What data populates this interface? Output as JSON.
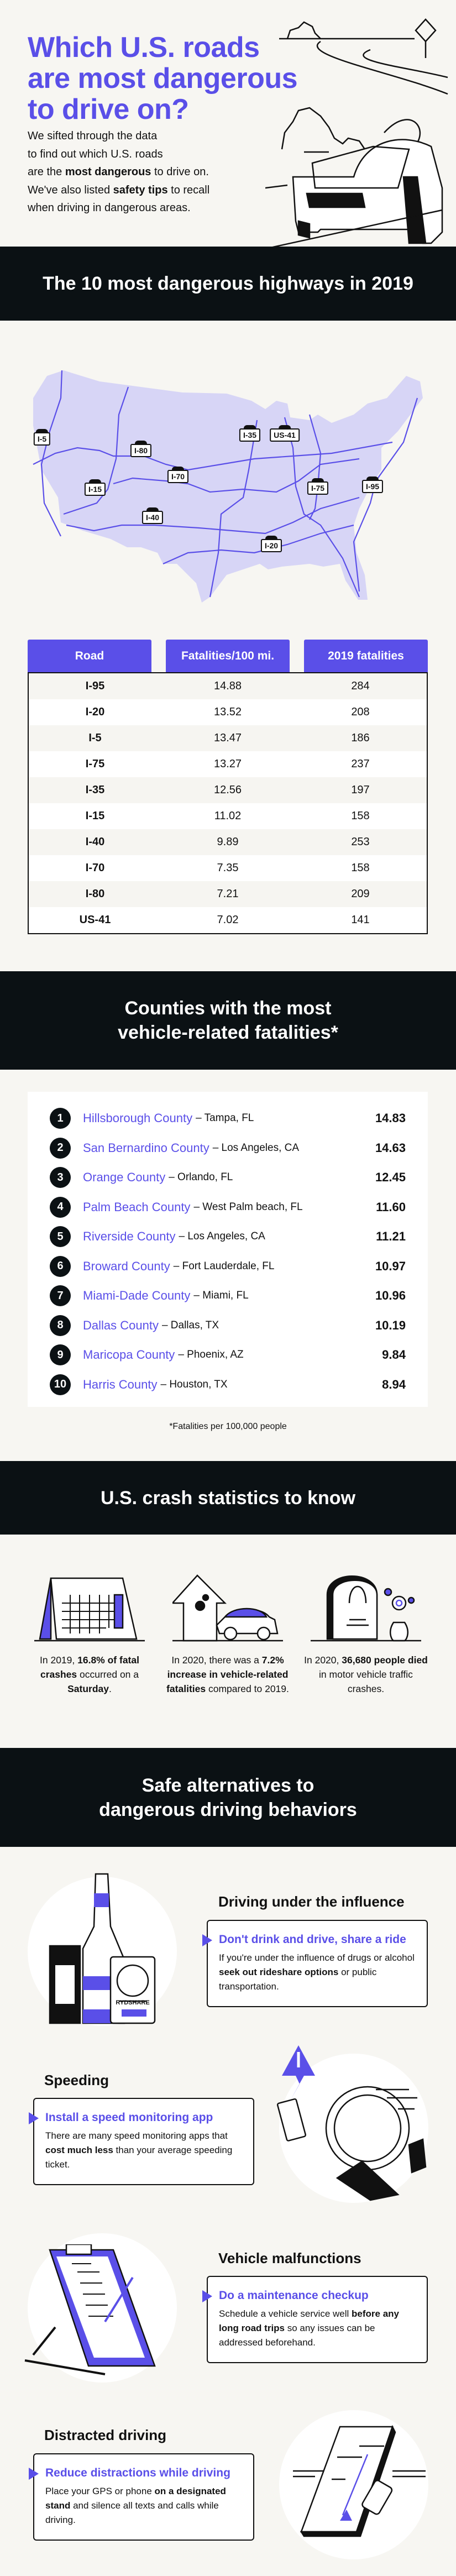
{
  "hero": {
    "title_lines": [
      "Which U.S. roads",
      "are most dangerous",
      "to drive on?"
    ],
    "intro": {
      "l1": "We sifted through the data",
      "l2": "to find out which U.S. roads",
      "l3a": "are the ",
      "l3b": "most dangerous",
      "l3c": " to drive on.",
      "l4a": "We've also listed ",
      "l4b": "safety tips",
      "l4c": " to recall",
      "l5": "when driving in dangerous areas."
    }
  },
  "highways": {
    "heading": "The 10 most dangerous highways in 2019",
    "map_labels": [
      "I-5",
      "I-80",
      "I-35",
      "US-41",
      "I-70",
      "I-15",
      "I-75",
      "I-95",
      "I-40",
      "I-20"
    ],
    "columns": [
      "Road",
      "Fatalities/100 mi.",
      "2019 fatalities"
    ],
    "rows": [
      [
        "I-95",
        "14.88",
        "284"
      ],
      [
        "I-20",
        "13.52",
        "208"
      ],
      [
        "I-5",
        "13.47",
        "186"
      ],
      [
        "I-75",
        "13.27",
        "237"
      ],
      [
        "I-35",
        "12.56",
        "197"
      ],
      [
        "I-15",
        "11.02",
        "158"
      ],
      [
        "I-40",
        "9.89",
        "253"
      ],
      [
        "I-70",
        "7.35",
        "158"
      ],
      [
        "I-80",
        "7.21",
        "209"
      ],
      [
        "US-41",
        "7.02",
        "141"
      ]
    ]
  },
  "counties": {
    "heading_l1": "Counties with the most",
    "heading_l2": "vehicle-related fatalities*",
    "items": [
      {
        "rank": "1",
        "name": "Hillsborough County",
        "place": "– Tampa, FL",
        "value": "14.83"
      },
      {
        "rank": "2",
        "name": "San Bernardino County",
        "place": "– Los Angeles, CA",
        "value": "14.63"
      },
      {
        "rank": "3",
        "name": "Orange County",
        "place": "– Orlando, FL",
        "value": "12.45"
      },
      {
        "rank": "4",
        "name": "Palm Beach County",
        "place": "– West Palm beach, FL",
        "value": "11.60"
      },
      {
        "rank": "5",
        "name": "Riverside County",
        "place": "– Los Angeles, CA",
        "value": "11.21"
      },
      {
        "rank": "6",
        "name": "Broward County",
        "place": "– Fort Lauderdale, FL",
        "value": "10.97"
      },
      {
        "rank": "7",
        "name": "Miami-Dade County",
        "place": "– Miami, FL",
        "value": "10.96"
      },
      {
        "rank": "8",
        "name": "Dallas County",
        "place": "– Dallas, TX",
        "value": "10.19"
      },
      {
        "rank": "9",
        "name": "Maricopa County",
        "place": "– Phoenix, AZ",
        "value": "9.84"
      },
      {
        "rank": "10",
        "name": "Harris County",
        "place": "– Houston, TX",
        "value": "8.94"
      }
    ],
    "footnote": "*Fatalities per 100,000 people"
  },
  "stats": {
    "heading": "U.S. crash statistics to know",
    "s1": {
      "a": "In 2019, ",
      "b": "16.8% of fatal crashes",
      "c": " occurred on a ",
      "d": "Saturday",
      "e": "."
    },
    "s2": {
      "a": "In 2020, there was a ",
      "b": "7.2% increase in vehicle-related fatalities",
      "c": " compared to 2019."
    },
    "s3": {
      "a": "In 2020, ",
      "b": "36,680 people died",
      "c": " in motor vehicle traffic crashes."
    }
  },
  "alternatives": {
    "heading_l1": "Safe alternatives to",
    "heading_l2": "dangerous driving behaviors",
    "dui": {
      "heading": "Driving under the influence",
      "tip": "Don't drink and drive, share a ride",
      "a": "If you're under the influence of drugs or alcohol ",
      "b": "seek out rideshare options",
      "c": " or public transportation.",
      "app_label": "RYDSHARE"
    },
    "speeding": {
      "heading": "Speeding",
      "tip": "Install a speed monitoring app",
      "a": "There are many speed monitoring apps that ",
      "b": "cost much less",
      "c": " than your average speeding ticket."
    },
    "malfunction": {
      "heading": "Vehicle malfunctions",
      "tip": "Do a maintenance checkup",
      "a": "Schedule a vehicle service well ",
      "b": "before any long road trips",
      "c": " so any issues can be addressed beforehand."
    },
    "distracted": {
      "heading": "Distracted driving",
      "tip": "Reduce distractions while driving",
      "a": "Place your GPS or phone ",
      "b": "on a designated stand",
      "c": " and silence all texts and calls while driving."
    }
  },
  "colors": {
    "accent": "#5a4fe8",
    "dark": "#0b1114",
    "map_fill": "#d7d5f6",
    "background": "#f7f6f2"
  }
}
